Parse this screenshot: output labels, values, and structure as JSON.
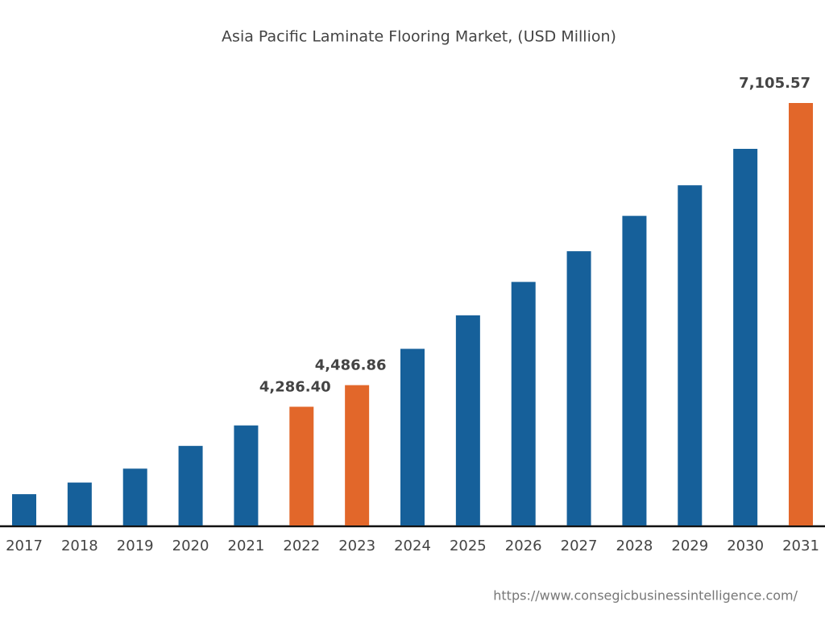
{
  "chart_data": {
    "type": "bar",
    "title": "Asia Pacific Laminate Flooring Market, (USD Million)",
    "categories": [
      "2017",
      "2018",
      "2019",
      "2020",
      "2021",
      "2022",
      "2023",
      "2024",
      "2025",
      "2026",
      "2027",
      "2028",
      "2029",
      "2030",
      "2031"
    ],
    "values": [
      3475,
      3583,
      3712,
      3923,
      4113,
      4286.4,
      4486.86,
      4824,
      5135,
      5445,
      5730,
      6058,
      6342,
      6680,
      7105.57
    ],
    "value_labels": [
      null,
      null,
      null,
      null,
      null,
      "4,286.40",
      "4,486.86",
      null,
      null,
      null,
      null,
      null,
      null,
      null,
      "7,105.57"
    ],
    "colors": [
      "#16609a",
      "#16609a",
      "#16609a",
      "#16609a",
      "#16609a",
      "#e2672a",
      "#e2672a",
      "#16609a",
      "#16609a",
      "#16609a",
      "#16609a",
      "#16609a",
      "#16609a",
      "#16609a",
      "#e2672a"
    ],
    "source": "https://www.consegicbusinessintelligence.com/"
  }
}
